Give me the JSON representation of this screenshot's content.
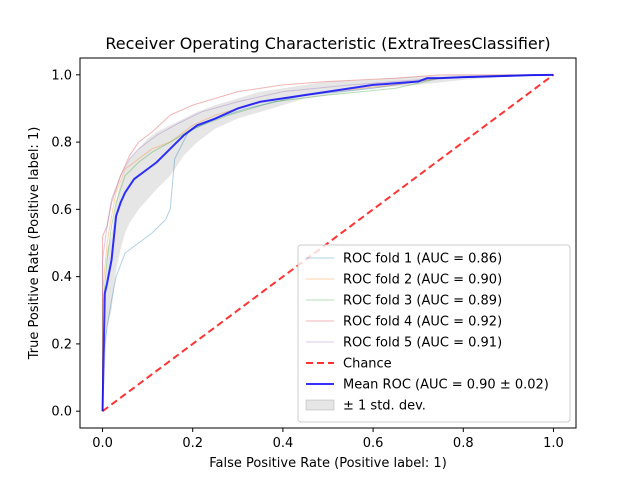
{
  "chart_data": {
    "type": "line",
    "title": "Receiver Operating Characteristic (ExtraTreesClassifier)",
    "xlabel": "False Positive Rate (Positive label: 1)",
    "ylabel": "True Positive Rate (Positive label: 1)",
    "xlim": [
      -0.05,
      1.05
    ],
    "ylim": [
      -0.05,
      1.05
    ],
    "xticks": [
      "0.0",
      "0.2",
      "0.4",
      "0.6",
      "0.8",
      "1.0"
    ],
    "yticks": [
      "0.0",
      "0.2",
      "0.4",
      "0.6",
      "0.8",
      "1.0"
    ],
    "grid": false,
    "legend_position": "lower-right",
    "series": [
      {
        "name": "ROC fold 1 (AUC = 0.86)",
        "color": "#1f77b4",
        "x": [
          0,
          0.0,
          0.01,
          0.02,
          0.03,
          0.05,
          0.08,
          0.11,
          0.14,
          0.15,
          0.16,
          0.19,
          0.25,
          0.32,
          0.45,
          0.6,
          0.75,
          0.9,
          1.0
        ],
        "y": [
          0,
          0.15,
          0.25,
          0.33,
          0.4,
          0.47,
          0.5,
          0.53,
          0.57,
          0.6,
          0.75,
          0.83,
          0.87,
          0.9,
          0.94,
          0.96,
          0.99,
          1.0,
          1.0
        ]
      },
      {
        "name": "ROC fold 2 (AUC = 0.90)",
        "color": "#ff7f0e",
        "x": [
          0,
          0.0,
          0.01,
          0.02,
          0.03,
          0.05,
          0.08,
          0.11,
          0.15,
          0.2,
          0.25,
          0.35,
          0.5,
          0.65,
          0.75,
          1.0
        ],
        "y": [
          0,
          0.35,
          0.5,
          0.58,
          0.65,
          0.72,
          0.75,
          0.78,
          0.8,
          0.85,
          0.88,
          0.92,
          0.95,
          0.97,
          0.99,
          1.0
        ]
      },
      {
        "name": "ROC fold 3 (AUC = 0.89)",
        "color": "#2ca02c",
        "x": [
          0,
          0.0,
          0.01,
          0.02,
          0.03,
          0.05,
          0.08,
          0.11,
          0.15,
          0.2,
          0.28,
          0.38,
          0.5,
          0.65,
          0.75,
          1.0
        ],
        "y": [
          0,
          0.3,
          0.45,
          0.55,
          0.62,
          0.7,
          0.74,
          0.77,
          0.8,
          0.84,
          0.88,
          0.92,
          0.94,
          0.96,
          0.99,
          1.0
        ]
      },
      {
        "name": "ROC fold 4 (AUC = 0.92)",
        "color": "#d62728",
        "x": [
          0,
          0.0,
          0.01,
          0.02,
          0.04,
          0.06,
          0.08,
          0.11,
          0.15,
          0.2,
          0.3,
          0.4,
          0.5,
          0.65,
          0.75,
          1.0
        ],
        "y": [
          0,
          0.52,
          0.55,
          0.62,
          0.7,
          0.76,
          0.8,
          0.83,
          0.88,
          0.91,
          0.95,
          0.97,
          0.98,
          0.99,
          1.0,
          1.0
        ]
      },
      {
        "name": "ROC fold 5 (AUC = 0.91)",
        "color": "#9467bd",
        "x": [
          0,
          0.0,
          0.01,
          0.02,
          0.04,
          0.06,
          0.08,
          0.12,
          0.16,
          0.22,
          0.3,
          0.4,
          0.55,
          0.65,
          0.75,
          1.0
        ],
        "y": [
          0,
          0.45,
          0.55,
          0.63,
          0.7,
          0.75,
          0.78,
          0.82,
          0.85,
          0.89,
          0.92,
          0.95,
          0.97,
          0.98,
          0.99,
          1.0
        ]
      },
      {
        "name": "Chance",
        "color": "#ff0000",
        "dashed": true,
        "x": [
          0,
          1
        ],
        "y": [
          0,
          1
        ]
      },
      {
        "name": "Mean ROC (AUC = 0.90 ± 0.02)",
        "color": "#0000ff",
        "x": [
          0,
          0.005,
          0.01,
          0.02,
          0.03,
          0.04,
          0.05,
          0.06,
          0.07,
          0.08,
          0.1,
          0.12,
          0.15,
          0.18,
          0.21,
          0.25,
          0.3,
          0.35,
          0.4,
          0.45,
          0.5,
          0.55,
          0.6,
          0.65,
          0.7,
          0.72,
          0.75,
          0.8,
          0.85,
          0.9,
          0.95,
          1.0
        ],
        "y": [
          0,
          0.35,
          0.38,
          0.45,
          0.58,
          0.62,
          0.65,
          0.67,
          0.69,
          0.7,
          0.72,
          0.74,
          0.78,
          0.82,
          0.85,
          0.87,
          0.9,
          0.92,
          0.93,
          0.94,
          0.95,
          0.96,
          0.97,
          0.975,
          0.98,
          0.99,
          0.99,
          0.993,
          0.995,
          0.997,
          0.999,
          1.0
        ]
      }
    ],
    "std_band": {
      "name": "± 1 std. dev.",
      "color": "#808080",
      "x": [
        0,
        0.01,
        0.02,
        0.03,
        0.04,
        0.05,
        0.06,
        0.08,
        0.1,
        0.12,
        0.15,
        0.18,
        0.21,
        0.25,
        0.3,
        0.35,
        0.4,
        0.45,
        0.5,
        0.6,
        0.7,
        0.8,
        0.9,
        1.0
      ],
      "lower": [
        0,
        0.25,
        0.3,
        0.42,
        0.48,
        0.53,
        0.56,
        0.6,
        0.63,
        0.66,
        0.7,
        0.76,
        0.8,
        0.84,
        0.87,
        0.89,
        0.91,
        0.93,
        0.94,
        0.96,
        0.97,
        0.985,
        0.995,
        1.0
      ],
      "upper": [
        0,
        0.48,
        0.52,
        0.62,
        0.68,
        0.72,
        0.75,
        0.78,
        0.81,
        0.83,
        0.85,
        0.87,
        0.89,
        0.91,
        0.93,
        0.95,
        0.96,
        0.97,
        0.98,
        0.985,
        0.995,
        1.0,
        1.0,
        1.0
      ]
    }
  }
}
